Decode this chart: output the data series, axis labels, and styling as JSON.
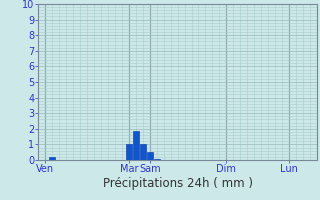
{
  "title": "",
  "xlabel": "Précipitations 24h ( mm )",
  "ylabel": "",
  "background_color": "#cce8e8",
  "plot_bg_color": "#cce8e8",
  "bar_color": "#1155cc",
  "bar_edge_color": "#0033aa",
  "ylim": [
    0,
    10
  ],
  "yticks": [
    0,
    1,
    2,
    3,
    4,
    5,
    6,
    7,
    8,
    9,
    10
  ],
  "ytick_label_color": "#3333cc",
  "xlabel_color": "#333333",
  "xlabel_fontsize": 8.5,
  "tick_fontsize": 7,
  "grid_color_minor": "#aacccc",
  "grid_color_major": "#99bbbb",
  "vline_color": "#778899",
  "n_slots": 40,
  "xtick_positions": [
    1,
    13,
    16,
    27,
    36
  ],
  "xtick_labels": [
    "Ven",
    "Mar",
    "Sam",
    "Dim",
    "Lun"
  ],
  "bar_positions": [
    2,
    13,
    14,
    15,
    16,
    17
  ],
  "bar_heights": [
    0.18,
    1.05,
    1.85,
    1.0,
    0.5,
    0.08
  ],
  "bar_width": 0.85
}
